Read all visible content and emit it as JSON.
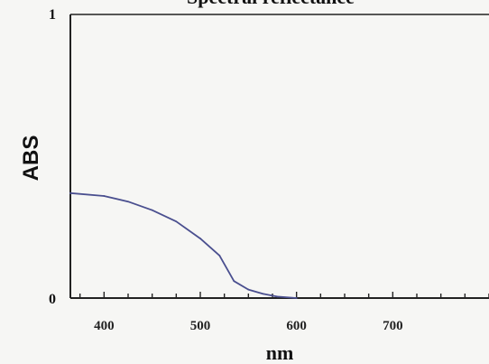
{
  "chart_data": {
    "type": "line",
    "title": "Spectral reflectance",
    "xlabel": "nm",
    "ylabel": "ABS",
    "xlim": [
      365,
      800
    ],
    "ylim": [
      0,
      1
    ],
    "x_ticks": [
      400,
      500,
      600,
      700
    ],
    "x_minor_step": 25,
    "y_tick_labels": [
      "0",
      "1"
    ],
    "grid": false,
    "colors": {
      "line": "#4a4f8f",
      "axis": "#222222"
    },
    "series": [
      {
        "x": [
          365,
          400,
          425,
          450,
          475,
          500,
          520,
          535,
          550,
          565,
          580,
          600
        ],
        "y": [
          0.37,
          0.36,
          0.34,
          0.31,
          0.27,
          0.21,
          0.15,
          0.06,
          0.03,
          0.015,
          0.005,
          0.0
        ]
      }
    ]
  }
}
